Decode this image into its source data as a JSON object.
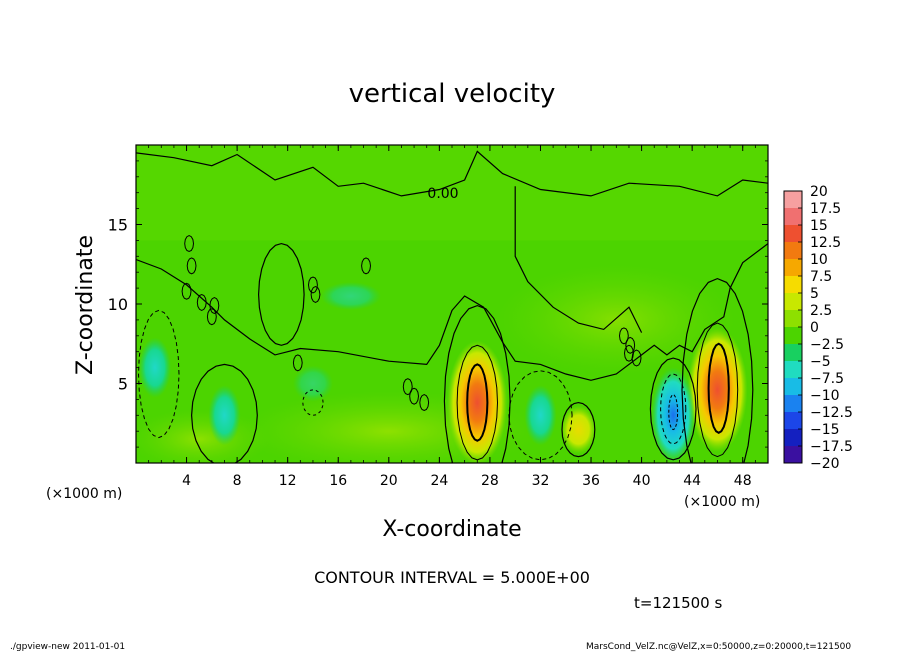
{
  "chart_data": {
    "type": "heatmap",
    "title": "vertical velocity",
    "xlabel": "X-coordinate",
    "ylabel": "Z-coordinate",
    "x_unit": "(×1000 m)",
    "xlim": [
      0,
      50
    ],
    "ylim": [
      0,
      20
    ],
    "x_ticks": [
      "4",
      "8",
      "12",
      "16",
      "20",
      "24",
      "28",
      "32",
      "36",
      "40",
      "44",
      "48"
    ],
    "y_ticks": [
      "5",
      "10",
      "15"
    ],
    "contour_interval_text": "CONTOUR INTERVAL = 5.000E+00",
    "contour_label": "0.00",
    "time_text": "t=121500 s",
    "colorbar": {
      "labels": [
        "20",
        "17.5",
        "15",
        "12.5",
        "10",
        "7.5",
        "5",
        "2.5",
        "0",
        "−2.5",
        "−5",
        "−7.5",
        "−10",
        "−12.5",
        "−15",
        "−17.5",
        "−20"
      ],
      "colors": [
        "#f6a0a0",
        "#f07070",
        "#ee5030",
        "#f27a10",
        "#f6a800",
        "#f6dc00",
        "#c8e800",
        "#8ee000",
        "#4cd400",
        "#18d060",
        "#20dcc0",
        "#18bce6",
        "#1a82f0",
        "#1c46e8",
        "#1420c0",
        "#3a10a0",
        "#6e1ab8"
      ]
    },
    "updrafts": [
      {
        "x": 27,
        "z": 3.8,
        "peak": 12
      },
      {
        "x": 46,
        "z": 4.6,
        "peak": 13
      },
      {
        "x": 35,
        "z": 2.1,
        "peak": 6
      }
    ],
    "downdrafts": [
      {
        "x": 42.5,
        "z": 3.0,
        "peak": -10
      },
      {
        "x": 32,
        "z": 3.0,
        "peak": -4
      },
      {
        "x": 7,
        "z": 3.0,
        "peak": -5
      },
      {
        "x": 1.5,
        "z": 6.0,
        "peak": -4
      }
    ]
  },
  "footer": {
    "left": "./gpview-new   2011-01-01",
    "right": "MarsCond_VelZ.nc@VelZ,x=0:50000,z=0:20000,t=121500"
  }
}
